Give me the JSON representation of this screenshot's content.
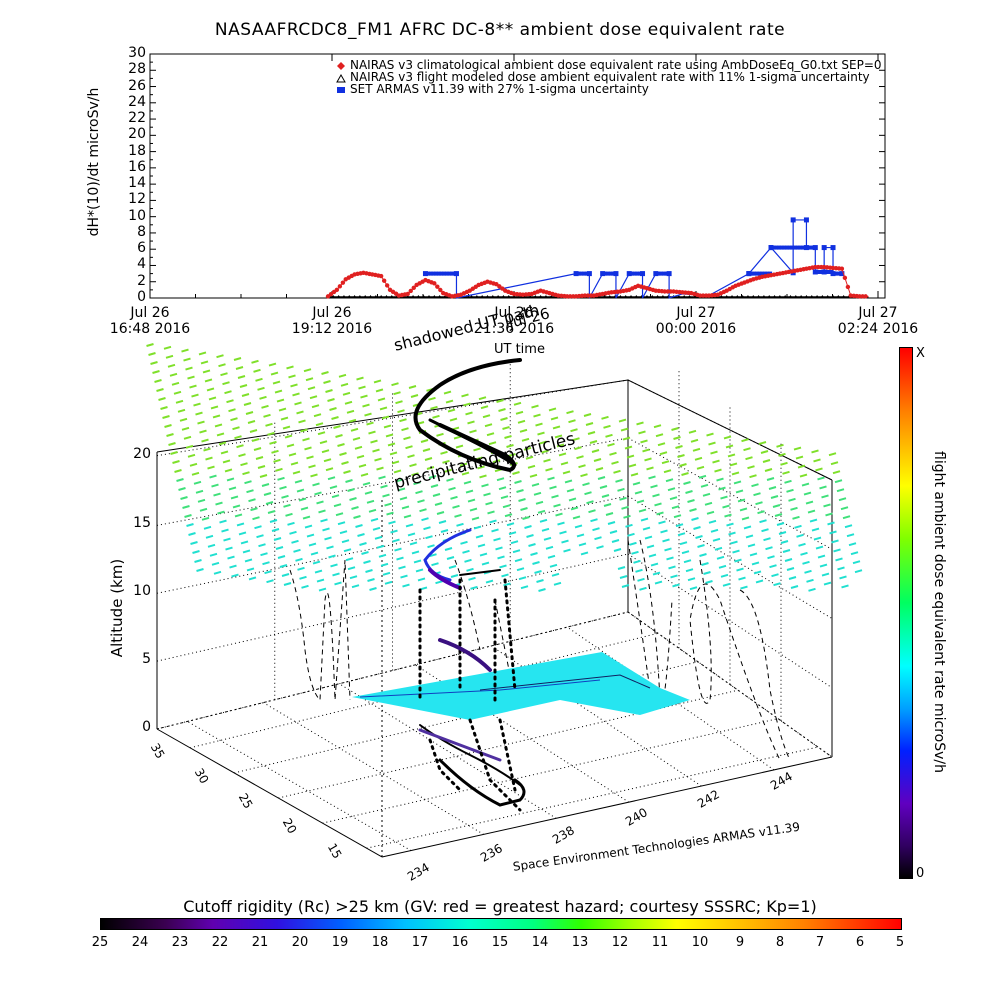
{
  "chart_data": [
    {
      "type": "line",
      "title": "NASAAFRCDC8_FM1 AFRC DC-8** ambient dose equivalent rate",
      "ylabel": "dH*(10)/dt microSv/h",
      "xlabel": "UT time",
      "ylim": [
        0,
        30
      ],
      "yticks": [
        "0",
        "2",
        "4",
        "6",
        "8",
        "10",
        "12",
        "14",
        "16",
        "18",
        "20",
        "22",
        "24",
        "26",
        "28",
        "30"
      ],
      "xticks": [
        {
          "line1": "Jul 26",
          "line2": "16:48 2016"
        },
        {
          "line1": "Jul 26",
          "line2": "19:12 2016"
        },
        {
          "line1": "Jul 26",
          "line2": "21:36 2016"
        },
        {
          "line1": "Jul 27",
          "line2": "00:00 2016"
        },
        {
          "line1": "Jul 27",
          "line2": "02:24 2016"
        }
      ],
      "legend": [
        {
          "label": "NAIRAS v3 climatological ambient dose equivalent rate using AmbDoseEq_G0.txt SEP=0",
          "color": "#e02020",
          "marker": "diamond"
        },
        {
          "label": "NAIRAS v3 flight modeled dose ambient equivalent rate with 11% 1-sigma uncertainty",
          "color": "#000000",
          "marker": "triangle"
        },
        {
          "label": "SET ARMAS v11.39 with 27% 1-sigma uncertainty",
          "color": "#1030e0",
          "marker": "square"
        }
      ],
      "series": [
        {
          "name": "NAIRAS v3 climatological ambient dose equivalent rate using AmbDoseEq_G0.txt SEP=0",
          "x_hours": [
            0,
            0.2,
            0.4,
            0.6,
            0.8,
            1.0,
            1.2,
            1.4,
            1.6,
            1.8,
            2.0,
            2.2,
            2.4,
            2.6,
            2.8,
            3.0,
            3.2,
            3.4,
            3.6,
            3.8,
            4.0,
            4.2,
            4.4,
            4.6,
            4.8,
            5.0,
            5.2,
            5.4,
            5.6,
            5.8,
            6.0,
            6.2,
            6.4,
            6.6,
            6.8,
            7.0,
            7.2,
            7.4,
            7.6,
            7.8,
            8.0,
            8.2,
            8.4,
            8.6,
            8.8,
            9.0,
            9.2,
            9.4,
            9.6,
            9.8,
            10.0,
            10.2,
            10.4,
            10.6,
            10.8,
            11.0,
            11.2,
            11.4,
            11.6,
            11.8,
            12.0,
            12.2
          ],
          "values": [
            0.2,
            1.0,
            2.3,
            2.9,
            3.1,
            2.9,
            2.7,
            1.0,
            0.3,
            0.5,
            1.6,
            2.2,
            1.8,
            0.6,
            0.2,
            0.4,
            0.9,
            1.6,
            2.0,
            1.7,
            0.9,
            0.5,
            0.4,
            0.5,
            0.9,
            0.6,
            0.3,
            0.2,
            0.2,
            0.3,
            0.3,
            0.5,
            0.7,
            0.8,
            1.0,
            1.5,
            1.2,
            0.9,
            0.8,
            0.8,
            0.7,
            0.6,
            0.3,
            0.3,
            0.4,
            0.9,
            1.5,
            1.9,
            2.3,
            2.6,
            2.8,
            3.0,
            3.2,
            3.4,
            3.6,
            3.8,
            3.8,
            3.7,
            3.6,
            0.3,
            0.2,
            0.2
          ]
        },
        {
          "name": "NAIRAS v3 flight modeled dose ambient equivalent rate with 11% 1-sigma uncertainty",
          "x_hours": [
            0,
            12.2
          ],
          "values": [
            0,
            0
          ]
        },
        {
          "name": "SET ARMAS v11.39 with 27% 1-sigma uncertainty",
          "x_hours": [
            2.2,
            2.9,
            2.9,
            5.6,
            5.9,
            5.9,
            6.2,
            6.5,
            6.5,
            6.8,
            7.1,
            7.1,
            7.4,
            7.7,
            7.7,
            8.0,
            8.6,
            9.5,
            9.5,
            10.0,
            10.0,
            10.5,
            10.5,
            10.8,
            10.8,
            11.0,
            11.0,
            11.2,
            11.2,
            11.4,
            11.4,
            11.6
          ],
          "values": [
            3.0,
            3.0,
            0.0,
            3.0,
            3.0,
            0.0,
            3.0,
            3.0,
            0.0,
            3.0,
            3.0,
            0.0,
            3.0,
            3.0,
            0.0,
            0.5,
            0.3,
            3.0,
            3.0,
            6.2,
            6.2,
            3.1,
            9.6,
            9.6,
            6.2,
            6.2,
            3.2,
            3.2,
            6.2,
            6.2,
            3.0,
            3.0
          ]
        }
      ]
    },
    {
      "type": "scatter",
      "title": "",
      "annotations": [
        "shadowed UT path",
        "Jul 26",
        "precipitating particles"
      ],
      "zlabel": "Altitude (km)",
      "zticks": [
        "0",
        "5",
        "10",
        "15",
        "20"
      ],
      "longitude_ticks": [
        "234",
        "236",
        "238",
        "240",
        "242",
        "244"
      ],
      "latitude_ticks": [
        "15",
        "20",
        "25",
        "30",
        "35"
      ],
      "credit": "Space Environment Technologies ARMAS v11.39",
      "colorbar_right": {
        "label": "flight ambient dose equivalent rate microSv/h",
        "top": "X",
        "bottom": "0"
      }
    },
    {
      "type": "heatmap",
      "title": "Cutoff rigidity (Rc) >25 km (GV: red = greatest hazard; courtesy SSSRC; Kp=1)",
      "ticks": [
        "25",
        "24",
        "23",
        "22",
        "21",
        "20",
        "19",
        "18",
        "17",
        "16",
        "15",
        "14",
        "13",
        "12",
        "11",
        "10",
        "9",
        "8",
        "7",
        "6",
        "5"
      ]
    }
  ]
}
